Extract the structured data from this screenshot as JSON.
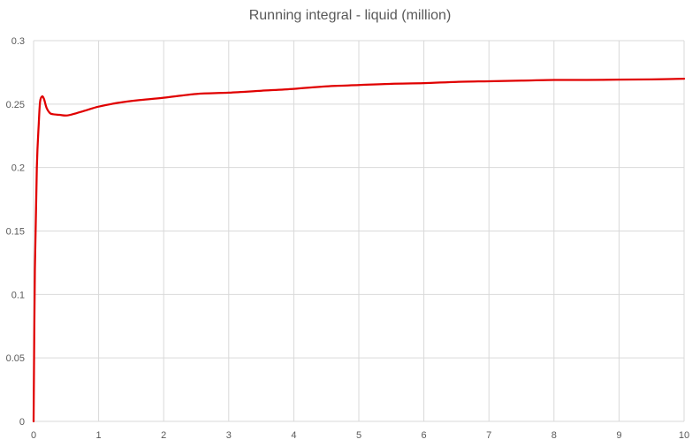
{
  "chart_data": {
    "type": "line",
    "title": "Running integral - liquid (million)",
    "xlabel": "",
    "ylabel": "",
    "xlim": [
      0,
      10
    ],
    "ylim": [
      0,
      0.3
    ],
    "x_ticks": [
      "0",
      "1",
      "2",
      "3",
      "4",
      "5",
      "6",
      "7",
      "8",
      "9",
      "10"
    ],
    "y_ticks": [
      "0",
      "0.05",
      "0.1",
      "0.15",
      "0.2",
      "0.25",
      "0.3"
    ],
    "grid": true,
    "legend": "none",
    "series": [
      {
        "color": "#e00000",
        "x": [
          0,
          0.02,
          0.05,
          0.08,
          0.1,
          0.13,
          0.16,
          0.2,
          0.25,
          0.3,
          0.4,
          0.5,
          0.6,
          0.8,
          1.0,
          1.3,
          1.6,
          2.0,
          2.5,
          3.0,
          3.5,
          4.0,
          4.5,
          5.0,
          5.5,
          6.0,
          6.5,
          7.0,
          7.5,
          8.0,
          8.5,
          9.0,
          9.5,
          10.0
        ],
        "y": [
          0,
          0.12,
          0.2,
          0.235,
          0.252,
          0.256,
          0.254,
          0.247,
          0.243,
          0.242,
          0.2415,
          0.241,
          0.242,
          0.245,
          0.248,
          0.251,
          0.253,
          0.255,
          0.258,
          0.259,
          0.2605,
          0.262,
          0.264,
          0.265,
          0.266,
          0.2665,
          0.2675,
          0.268,
          0.2685,
          0.269,
          0.269,
          0.2693,
          0.2695,
          0.27
        ]
      }
    ]
  }
}
